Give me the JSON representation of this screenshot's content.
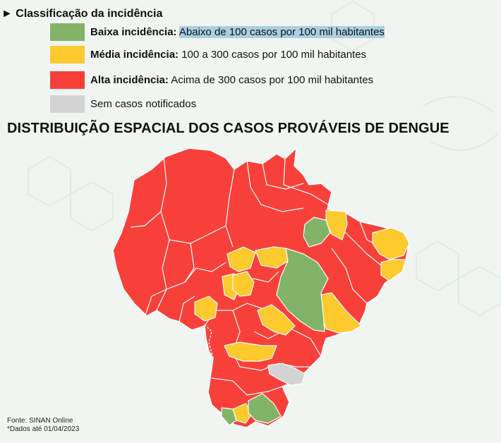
{
  "legend": {
    "title": "Classificação da incidência",
    "items": [
      {
        "label": "Baixa incidência:",
        "desc": "Abaixo de 100 casos por 100 mil habitantes",
        "color": "#82b366",
        "highlight": true
      },
      {
        "label": "Média incidência:",
        "desc": "100 a 300 casos por 100 mil habitantes",
        "color": "#fdca2e",
        "highlight": false
      },
      {
        "label": "Alta incidência:",
        "desc": "Acima de 300 casos por 100 mil habitantes",
        "color": "#f8403a",
        "highlight": false
      },
      {
        "label": "",
        "desc": "Sem casos notificados",
        "color": "#d3d3d3",
        "highlight": false
      }
    ]
  },
  "map": {
    "title": "DISTRIBUIÇÃO ESPACIAL DOS CASOS PROVÁVEIS DE DENGUE",
    "colors": {
      "alta": "#f8403a",
      "media": "#fdca2e",
      "baixa": "#82b366",
      "sem": "#d3d3d3",
      "border": "#ffffff"
    }
  },
  "footer": {
    "source": "Fonte: SINAN Online",
    "date": "*Dados até 01/04/2023"
  }
}
